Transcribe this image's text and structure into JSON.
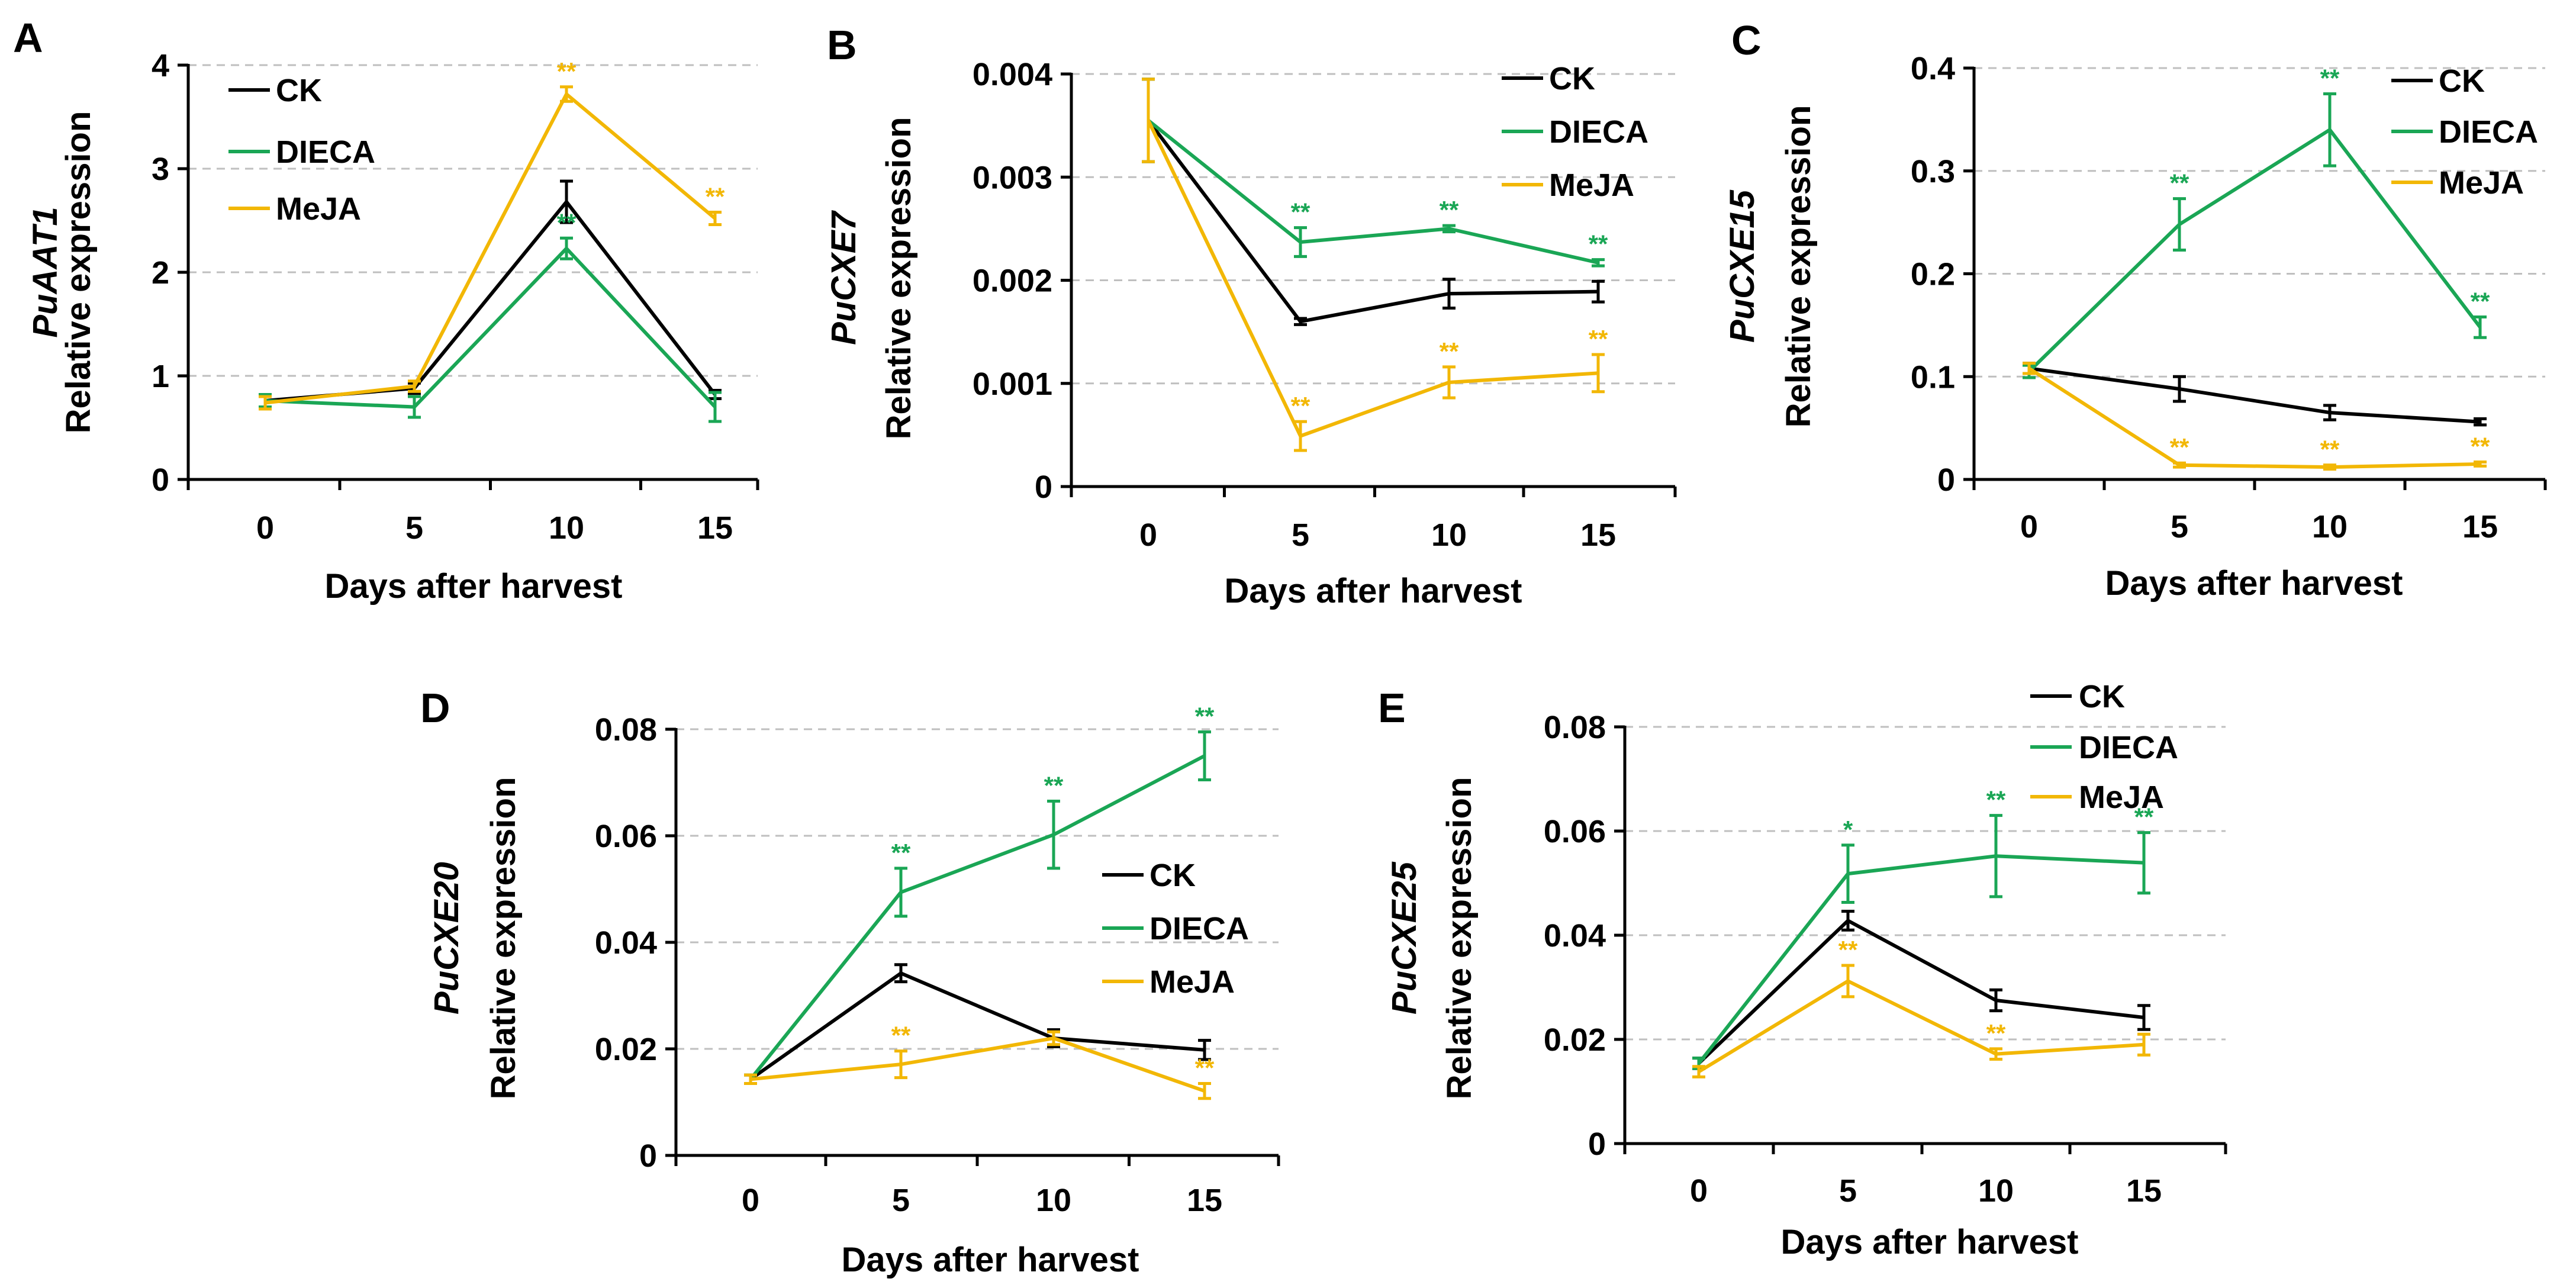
{
  "colors": {
    "CK": "#000000",
    "DIECA": "#1aa655",
    "MeJA": "#f2b705"
  },
  "chart_data": [
    {
      "panel": "A",
      "type": "line",
      "gene": "PuAAT1",
      "ylabel": "Relative expression",
      "xlabel": "Days after harvest",
      "x": [
        0,
        5,
        10,
        15
      ],
      "x_tick_labels": [
        "0",
        "5",
        "10",
        "15"
      ],
      "ylim": [
        0,
        4
      ],
      "y_ticks": [
        0,
        1,
        2,
        3,
        4
      ],
      "y_tick_labels": [
        "0",
        "1",
        "2",
        "3",
        "4"
      ],
      "legend": [
        "CK",
        "DIECA",
        "MeJA"
      ],
      "legend_position": "top-left",
      "series": [
        {
          "name": "CK",
          "values": [
            0.76,
            0.88,
            2.68,
            0.82
          ],
          "errors": [
            0.06,
            0.05,
            0.2,
            0.04
          ],
          "sig": [
            "",
            "",
            "",
            ""
          ]
        },
        {
          "name": "DIECA",
          "values": [
            0.76,
            0.7,
            2.23,
            0.7
          ],
          "errors": [
            0.06,
            0.1,
            0.1,
            0.14
          ],
          "sig": [
            "",
            "",
            "**",
            ""
          ]
        },
        {
          "name": "MeJA",
          "values": [
            0.74,
            0.9,
            3.72,
            2.52
          ],
          "errors": [
            0.06,
            0.05,
            0.07,
            0.06
          ],
          "sig": [
            "",
            "",
            "**",
            "**"
          ]
        }
      ]
    },
    {
      "panel": "B",
      "type": "line",
      "gene": "PuCXE7",
      "ylabel": "Relative expression",
      "xlabel": "Days after harvest",
      "x": [
        0,
        5,
        10,
        15
      ],
      "x_tick_labels": [
        "0",
        "5",
        "10",
        "15"
      ],
      "ylim": [
        0,
        0.004
      ],
      "y_ticks": [
        0,
        0.001,
        0.002,
        0.003,
        0.004
      ],
      "y_tick_labels": [
        "0",
        "0.001",
        "0.002",
        "0.003",
        "0.004"
      ],
      "legend": [
        "CK",
        "DIECA",
        "MeJA"
      ],
      "legend_position": "top-right",
      "series": [
        {
          "name": "CK",
          "values": [
            0.00355,
            0.0016,
            0.00187,
            0.00189
          ],
          "errors": [
            0.0004,
            3e-05,
            0.00014,
            0.0001
          ],
          "sig": [
            "",
            "",
            "",
            ""
          ]
        },
        {
          "name": "DIECA",
          "values": [
            0.00355,
            0.00237,
            0.0025,
            0.00217
          ],
          "errors": [
            0.0004,
            0.00014,
            3e-05,
            3e-05
          ],
          "sig": [
            "",
            "**",
            "**",
            "**"
          ]
        },
        {
          "name": "MeJA",
          "values": [
            0.00355,
            0.00049,
            0.00101,
            0.0011
          ],
          "errors": [
            0.0004,
            0.00014,
            0.00015,
            0.00018
          ],
          "sig": [
            "",
            "**",
            "**",
            "**"
          ]
        }
      ]
    },
    {
      "panel": "C",
      "type": "line",
      "gene": "PuCXE15",
      "ylabel": "Relative expression",
      "xlabel": "Days after harvest",
      "x": [
        0,
        5,
        10,
        15
      ],
      "x_tick_labels": [
        "0",
        "5",
        "10",
        "15"
      ],
      "ylim": [
        0,
        0.4
      ],
      "y_ticks": [
        0,
        0.1,
        0.2,
        0.3,
        0.4
      ],
      "y_tick_labels": [
        "0",
        "0.1",
        "0.2",
        "0.3",
        "0.4"
      ],
      "legend": [
        "CK",
        "DIECA",
        "MeJA"
      ],
      "legend_position": "top-right",
      "series": [
        {
          "name": "CK",
          "values": [
            0.108,
            0.088,
            0.065,
            0.056
          ],
          "errors": [
            0.005,
            0.012,
            0.007,
            0.003
          ],
          "sig": [
            "",
            "",
            "",
            ""
          ]
        },
        {
          "name": "DIECA",
          "values": [
            0.105,
            0.248,
            0.34,
            0.148
          ],
          "errors": [
            0.006,
            0.025,
            0.035,
            0.01
          ],
          "sig": [
            "",
            "**",
            "**",
            "**"
          ]
        },
        {
          "name": "MeJA",
          "values": [
            0.108,
            0.014,
            0.012,
            0.015
          ],
          "errors": [
            0.005,
            0.002,
            0.002,
            0.002
          ],
          "sig": [
            "",
            "**",
            "**",
            "**"
          ]
        }
      ]
    },
    {
      "panel": "D",
      "type": "line",
      "gene": "PuCXE20",
      "ylabel": "Relative expression",
      "xlabel": "Days after harvest",
      "x": [
        0,
        5,
        10,
        15
      ],
      "x_tick_labels": [
        "0",
        "5",
        "10",
        "15"
      ],
      "ylim": [
        0,
        0.08
      ],
      "y_ticks": [
        0,
        0.02,
        0.04,
        0.06,
        0.08
      ],
      "y_tick_labels": [
        "0",
        "0.02",
        "0.04",
        "0.06",
        "0.08"
      ],
      "legend": [
        "CK",
        "DIECA",
        "MeJA"
      ],
      "legend_position": "center-right",
      "series": [
        {
          "name": "CK",
          "values": [
            0.0143,
            0.0342,
            0.022,
            0.0198
          ],
          "errors": [
            0.0008,
            0.0016,
            0.0016,
            0.0018
          ],
          "sig": [
            "",
            "",
            "",
            ""
          ]
        },
        {
          "name": "DIECA",
          "values": [
            0.0143,
            0.0494,
            0.0602,
            0.075
          ],
          "errors": [
            0.0008,
            0.0045,
            0.0063,
            0.0045
          ],
          "sig": [
            "",
            "**",
            "**",
            "**"
          ]
        },
        {
          "name": "MeJA",
          "values": [
            0.0143,
            0.0171,
            0.022,
            0.0121
          ],
          "errors": [
            0.0008,
            0.0025,
            0.0012,
            0.0014
          ],
          "sig": [
            "",
            "**",
            "",
            "**"
          ]
        }
      ]
    },
    {
      "panel": "E",
      "type": "line",
      "gene": "PuCXE25",
      "ylabel": "Relative expression",
      "xlabel": "Days after harvest",
      "x": [
        0,
        5,
        10,
        15
      ],
      "x_tick_labels": [
        "0",
        "5",
        "10",
        "15"
      ],
      "ylim": [
        0,
        0.08
      ],
      "y_ticks": [
        0,
        0.02,
        0.04,
        0.06,
        0.08
      ],
      "y_tick_labels": [
        "0",
        "0.02",
        "0.04",
        "0.06",
        "0.08"
      ],
      "legend": [
        "CK",
        "DIECA",
        "MeJA"
      ],
      "legend_position": "top-center",
      "series": [
        {
          "name": "CK",
          "values": [
            0.0154,
            0.0428,
            0.0275,
            0.0242
          ],
          "errors": [
            0.001,
            0.0018,
            0.002,
            0.0023
          ],
          "sig": [
            "",
            "",
            "",
            ""
          ]
        },
        {
          "name": "DIECA",
          "values": [
            0.0154,
            0.0518,
            0.0552,
            0.0539
          ],
          "errors": [
            0.001,
            0.0055,
            0.0078,
            0.0058
          ],
          "sig": [
            "",
            "*",
            "**",
            "**"
          ]
        },
        {
          "name": "MeJA",
          "values": [
            0.0138,
            0.0312,
            0.0172,
            0.019
          ],
          "errors": [
            0.001,
            0.003,
            0.001,
            0.002
          ],
          "sig": [
            "",
            "**",
            "**",
            ""
          ]
        }
      ]
    }
  ]
}
